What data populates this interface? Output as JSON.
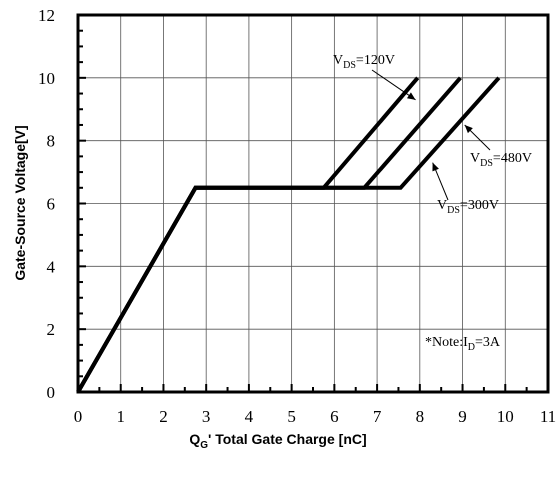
{
  "chart_data": {
    "type": "line",
    "title": "",
    "xlabel": {
      "main": "Q",
      "sub": "G",
      "rest": "' Total Gate Charge [nC]"
    },
    "ylabel": "Gate-Source Voltage[V]",
    "xlim": [
      0,
      11
    ],
    "ylim": [
      0,
      12
    ],
    "x_ticks": [
      0,
      1,
      2,
      3,
      4,
      5,
      6,
      7,
      8,
      9,
      10,
      11
    ],
    "y_ticks": [
      0,
      2,
      4,
      6,
      8,
      10,
      12
    ],
    "grid": true,
    "series": [
      {
        "name": "VDS=120V",
        "x": [
          0,
          2.75,
          5.75,
          7.95
        ],
        "y": [
          0,
          6.5,
          6.5,
          10
        ]
      },
      {
        "name": "VDS=300V",
        "x": [
          0,
          2.75,
          6.7,
          8.95
        ],
        "y": [
          0,
          6.5,
          6.5,
          10
        ]
      },
      {
        "name": "VDS=480V",
        "x": [
          0,
          2.75,
          7.55,
          9.85
        ],
        "y": [
          0,
          6.5,
          6.5,
          10
        ]
      }
    ],
    "annotations": [
      {
        "id": "vds120",
        "main": "V",
        "sub": "DS",
        "rest": "=120V",
        "arrow_to": [
          7.9,
          9.3
        ]
      },
      {
        "id": "vds480",
        "main": "V",
        "sub": "DS",
        "rest": "=480V",
        "arrow_to": [
          9.05,
          8.5
        ]
      },
      {
        "id": "vds300",
        "main": "V",
        "sub": "DS",
        "rest": "=300V",
        "arrow_to": [
          8.3,
          7.3
        ]
      },
      {
        "id": "note",
        "main": "*Note:I",
        "sub": "D",
        "rest": "=3A"
      }
    ]
  }
}
